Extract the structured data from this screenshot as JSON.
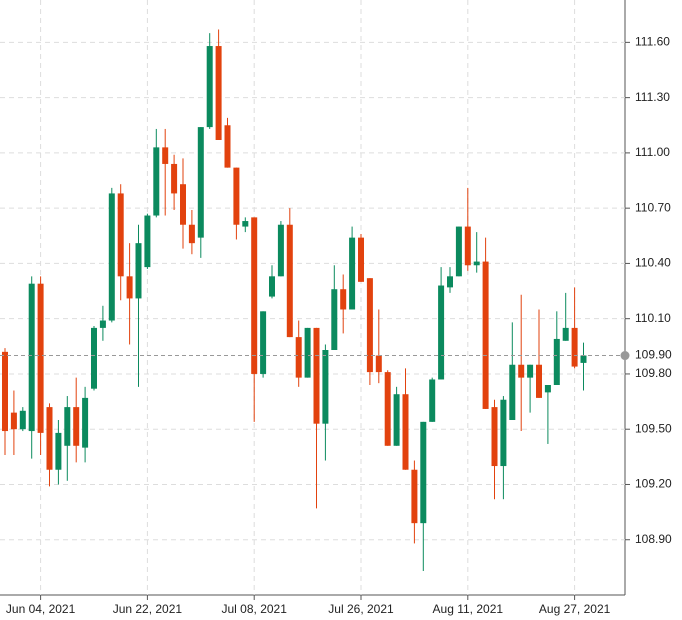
{
  "chart_data": {
    "type": "candlestick",
    "categories": [
      null,
      null,
      null,
      null,
      "Jun 04, 2021",
      null,
      null,
      null,
      null,
      null,
      null,
      null,
      null,
      null,
      null,
      null,
      "Jun 22, 2021",
      null,
      null,
      null,
      null,
      null,
      null,
      null,
      null,
      null,
      null,
      null,
      "Jul 08, 2021",
      null,
      null,
      null,
      null,
      null,
      null,
      null,
      null,
      null,
      null,
      null,
      "Jul 26, 2021",
      null,
      null,
      null,
      null,
      null,
      null,
      null,
      null,
      null,
      null,
      null,
      "Aug 11, 2021",
      null,
      null,
      null,
      null,
      null,
      null,
      null,
      null,
      null,
      null,
      null,
      "Aug 27, 2021",
      null
    ],
    "open": [
      109.92,
      109.59,
      109.5,
      109.49,
      110.29,
      109.62,
      109.28,
      109.41,
      109.62,
      109.4,
      109.72,
      110.05,
      110.09,
      110.78,
      110.33,
      110.21,
      110.38,
      110.66,
      111.03,
      110.94,
      110.83,
      110.61,
      110.54,
      111.14,
      111.58,
      111.15,
      110.92,
      110.6,
      110.65,
      109.8,
      110.22,
      110.33,
      110.61,
      110.0,
      109.78,
      110.05,
      109.53,
      109.93,
      110.26,
      110.15,
      110.54,
      110.32,
      109.9,
      109.81,
      109.41,
      109.69,
      109.28,
      108.99,
      109.54,
      109.77,
      110.27,
      110.33,
      110.6,
      110.39,
      110.41,
      109.62,
      109.3,
      109.55,
      109.85,
      109.78,
      109.85,
      109.7,
      109.74,
      109.98,
      110.05,
      109.86
    ],
    "high": [
      109.94,
      109.71,
      109.62,
      110.33,
      110.33,
      109.64,
      109.55,
      109.68,
      109.78,
      109.73,
      110.06,
      110.17,
      110.81,
      110.83,
      110.51,
      110.61,
      110.67,
      111.13,
      111.13,
      110.99,
      110.97,
      110.69,
      111.14,
      111.65,
      111.67,
      111.19,
      110.92,
      110.65,
      110.65,
      110.14,
      110.39,
      110.63,
      110.7,
      110.09,
      110.05,
      110.05,
      109.96,
      110.39,
      110.34,
      110.6,
      110.56,
      110.32,
      110.15,
      109.82,
      109.73,
      109.83,
      109.33,
      109.54,
      109.78,
      110.38,
      110.38,
      110.6,
      110.81,
      110.57,
      110.54,
      109.66,
      109.68,
      110.08,
      110.23,
      109.85,
      110.15,
      109.74,
      110.14,
      110.24,
      110.27,
      109.97
    ],
    "low": [
      109.36,
      109.36,
      109.49,
      109.34,
      109.36,
      109.19,
      109.2,
      109.22,
      109.32,
      109.32,
      109.71,
      109.98,
      110.08,
      110.2,
      109.96,
      109.73,
      110.37,
      110.65,
      110.66,
      110.69,
      110.48,
      110.45,
      110.43,
      111.13,
      111.07,
      110.92,
      110.53,
      110.57,
      109.54,
      109.78,
      110.21,
      110.33,
      110.0,
      109.73,
      109.78,
      109.07,
      109.33,
      109.93,
      110.02,
      110.15,
      110.3,
      109.74,
      109.75,
      109.41,
      109.41,
      109.28,
      108.88,
      108.73,
      109.54,
      109.77,
      110.24,
      110.33,
      110.36,
      110.35,
      109.61,
      109.12,
      109.12,
      109.55,
      109.49,
      109.59,
      109.67,
      109.42,
      109.74,
      109.98,
      109.83,
      109.71
    ],
    "close": [
      109.49,
      109.5,
      109.6,
      110.29,
      109.48,
      109.28,
      109.48,
      109.62,
      109.41,
      109.67,
      110.05,
      110.09,
      110.78,
      110.33,
      110.21,
      110.51,
      110.66,
      111.03,
      110.94,
      110.78,
      110.61,
      110.51,
      111.14,
      111.58,
      111.07,
      110.92,
      110.61,
      110.63,
      109.8,
      110.14,
      110.33,
      110.61,
      110.0,
      109.78,
      110.05,
      109.53,
      109.93,
      110.26,
      110.15,
      110.54,
      110.3,
      109.81,
      109.81,
      109.41,
      109.69,
      109.28,
      108.99,
      109.54,
      109.77,
      110.28,
      110.33,
      110.6,
      110.39,
      110.41,
      109.61,
      109.3,
      109.66,
      109.85,
      109.78,
      109.85,
      109.67,
      109.74,
      109.99,
      110.05,
      109.84,
      109.9
    ],
    "up_color": "#0b8a5e",
    "down_color": "#e2420e",
    "last_price": {
      "value": 109.9,
      "label": "109.90"
    },
    "ylim": [
      108.6,
      111.83
    ],
    "yticks": [
      {
        "value": 108.9,
        "label": "108.90"
      },
      {
        "value": 109.2,
        "label": "109.20"
      },
      {
        "value": 109.5,
        "label": "109.50"
      },
      {
        "value": 109.8,
        "label": "109.80"
      },
      {
        "value": 110.1,
        "label": "110.10"
      },
      {
        "value": 110.4,
        "label": "110.40"
      },
      {
        "value": 110.7,
        "label": "110.70"
      },
      {
        "value": 111.0,
        "label": "111.00"
      },
      {
        "value": 111.3,
        "label": "111.30"
      },
      {
        "value": 111.6,
        "label": "111.60"
      }
    ],
    "grid": true
  }
}
